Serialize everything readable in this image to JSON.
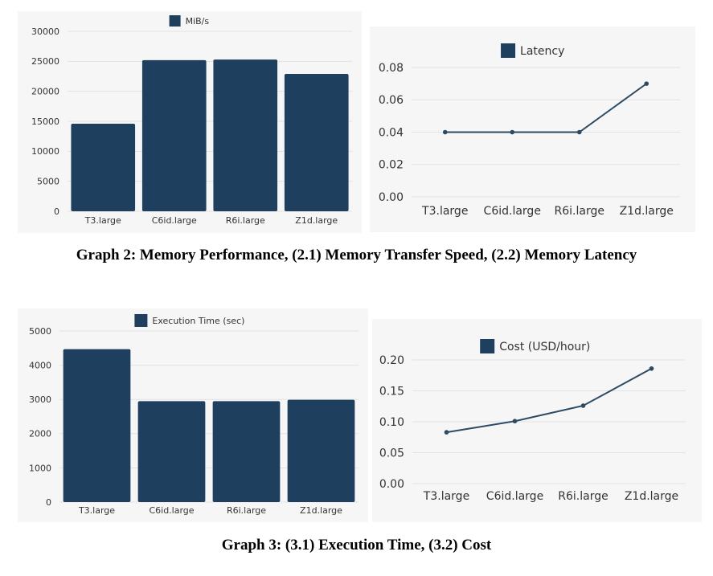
{
  "captions": {
    "graph2": "Graph 2: Memory Performance, (2.1) Memory Transfer Speed, (2.2) Memory Latency",
    "graph3": "Graph 3: (3.1) Execution Time, (3.2) Cost"
  },
  "colors": {
    "bar": "#1f3f5f",
    "line": "#2d4a63",
    "grid": "#e2e2e2",
    "panel_bg": "#f6f6f6"
  },
  "chart_data": [
    {
      "id": "chart-mibs",
      "type": "bar",
      "legend": "MiB/s",
      "categories": [
        "T3.large",
        "C6id.large",
        "R6i.large",
        "Z1d.large"
      ],
      "values": [
        14600,
        25200,
        25300,
        22900
      ],
      "ylim": [
        0,
        30000
      ],
      "yticks": [
        "0",
        "5000",
        "10000",
        "15000",
        "20000",
        "25000",
        "30000"
      ],
      "legend_position": "top-center",
      "grid": true
    },
    {
      "id": "chart-latency",
      "type": "line",
      "legend": "Latency",
      "categories": [
        "T3.large",
        "C6id.large",
        "R6i.large",
        "Z1d.large"
      ],
      "values": [
        0.04,
        0.04,
        0.04,
        0.07
      ],
      "ylim": [
        0,
        0.08
      ],
      "yticks": [
        "0.00",
        "0.02",
        "0.04",
        "0.06",
        "0.08"
      ],
      "legend_position": "top-center",
      "grid": true
    },
    {
      "id": "chart-exec",
      "type": "bar",
      "legend": "Execution Time (sec)",
      "categories": [
        "T3.large",
        "C6id.large",
        "R6i.large",
        "Z1d.large"
      ],
      "values": [
        4470,
        2950,
        2950,
        2990
      ],
      "ylim": [
        0,
        5000
      ],
      "yticks": [
        "0",
        "1000",
        "2000",
        "3000",
        "4000",
        "5000"
      ],
      "legend_position": "top-center",
      "grid": true
    },
    {
      "id": "chart-cost",
      "type": "line",
      "legend": "Cost (USD/hour)",
      "categories": [
        "T3.large",
        "C6id.large",
        "R6i.large",
        "Z1d.large"
      ],
      "values": [
        0.083,
        0.101,
        0.126,
        0.186
      ],
      "ylim": [
        0,
        0.2
      ],
      "yticks": [
        "0.00",
        "0.05",
        "0.10",
        "0.15",
        "0.20"
      ],
      "legend_position": "top-center",
      "grid": true
    }
  ]
}
